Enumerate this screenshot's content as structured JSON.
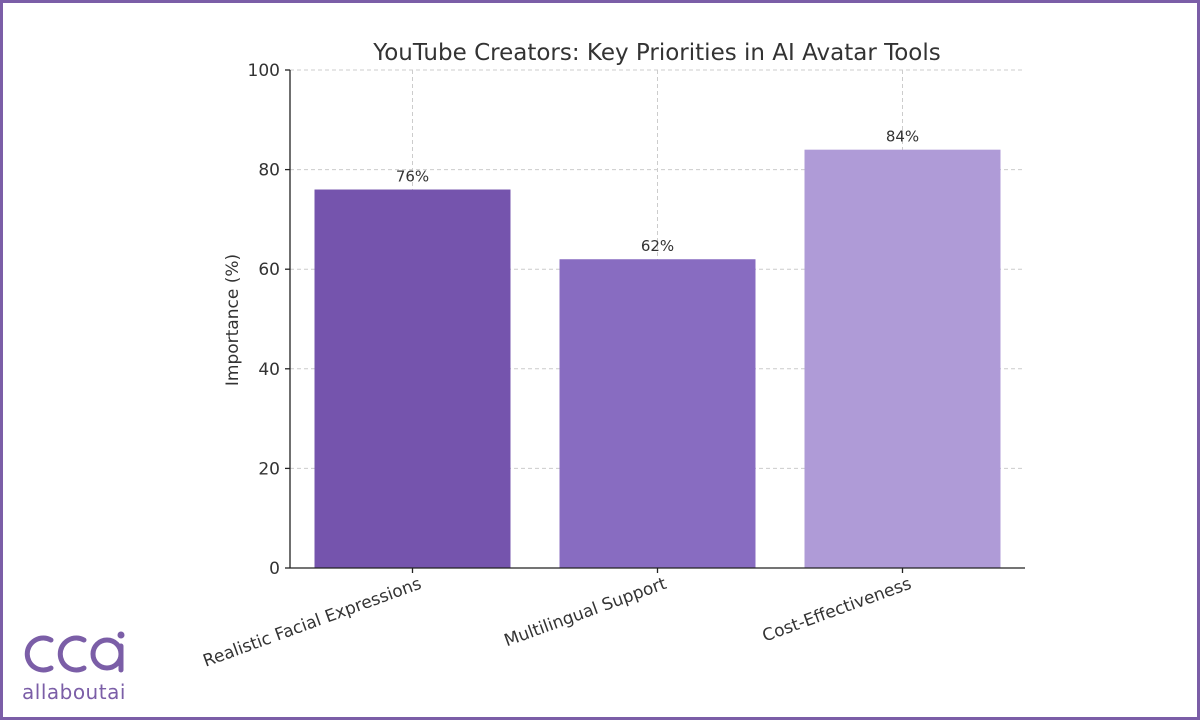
{
  "chart_data": {
    "type": "bar",
    "title": "YouTube Creators: Key Priorities in AI Avatar Tools",
    "ylabel": "Importance (%)",
    "xlabel": "",
    "ylim": [
      0,
      100
    ],
    "yticks": [
      0,
      20,
      40,
      60,
      80,
      100
    ],
    "grid": true,
    "categories": [
      "Realistic Facial Expressions",
      "Multilingual Support",
      "Cost-Effectiveness"
    ],
    "values": [
      76,
      62,
      84
    ],
    "data_labels": [
      "76%",
      "62%",
      "84%"
    ],
    "colors": [
      "#7554ad",
      "#886cc1",
      "#af9bd7"
    ]
  },
  "logo": {
    "text": "allaboutai",
    "color": "#7b5ea7"
  }
}
